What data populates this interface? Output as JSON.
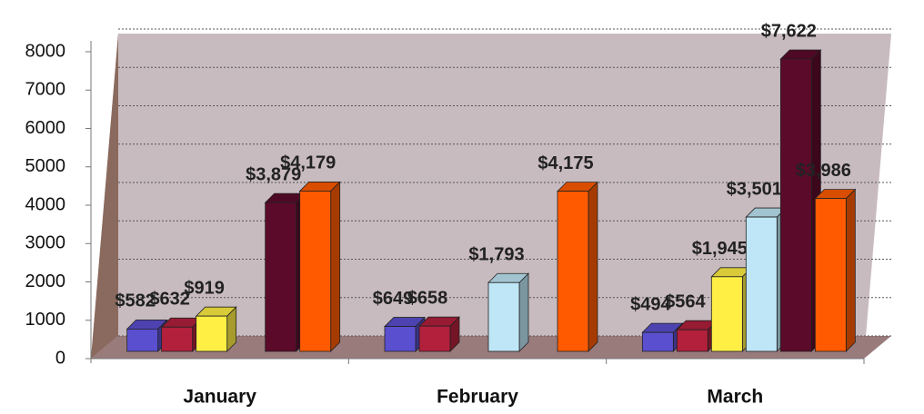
{
  "chart_data": {
    "type": "bar3d",
    "categories": [
      "January",
      "February",
      "March"
    ],
    "series": [
      {
        "color": "#5a4fcf",
        "values": [
          582,
          649,
          494
        ],
        "value_labels": [
          "$582",
          "$649",
          "$494"
        ]
      },
      {
        "color": "#b2203c",
        "values": [
          632,
          658,
          564
        ],
        "value_labels": [
          "$632",
          "$658",
          "$564"
        ]
      },
      {
        "color": "#ffee44",
        "values": [
          919,
          null,
          1945
        ],
        "value_labels": [
          "$919",
          null,
          "$1,945"
        ]
      },
      {
        "color": "#bfe6f6",
        "values": [
          null,
          1793,
          3501
        ],
        "value_labels": [
          null,
          "$1,793",
          "$3,501"
        ]
      },
      {
        "color": "#5c0a2a",
        "values": [
          3879,
          null,
          7622
        ],
        "value_labels": [
          "$3,879",
          null,
          "$7,622"
        ]
      },
      {
        "color": "#ff5a00",
        "values": [
          4179,
          4175,
          3986
        ],
        "value_labels": [
          "$4,179",
          "$4,175",
          "$3,986"
        ]
      }
    ],
    "ylim": [
      0,
      8000
    ],
    "yticks": [
      0,
      1000,
      2000,
      3000,
      4000,
      5000,
      6000,
      7000,
      8000
    ],
    "grid": true
  }
}
